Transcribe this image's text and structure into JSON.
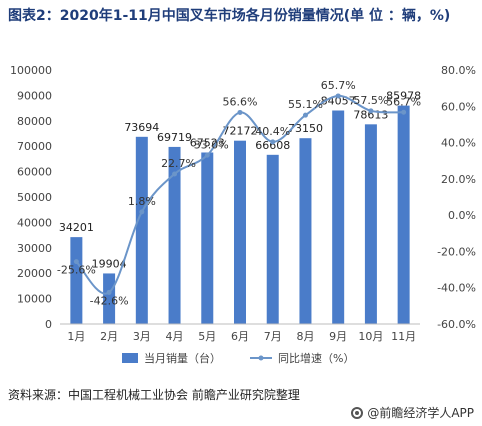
{
  "title": "图表2：2020年1-11月中国叉车市场各月份销量情况(单 位 ：辆，%)",
  "source": "资料来源：中国工程机械工业协会 前瞻产业研究院整理",
  "brand": "@前瞻经济学人APP",
  "colors": {
    "bar": "#4a7cc9",
    "line": "#6b95c9",
    "title": "#1f3d7a"
  },
  "chart_data": {
    "type": "bar",
    "categories": [
      "1月",
      "2月",
      "3月",
      "4月",
      "5月",
      "6月",
      "7月",
      "8月",
      "9月",
      "10月",
      "11月"
    ],
    "series": [
      {
        "name": "当月销量（台）",
        "type": "bar",
        "axis": "left",
        "values": [
          34201,
          19904,
          73694,
          69719,
          67523,
          72172,
          66608,
          73150,
          84057,
          78613,
          85978
        ],
        "labels": [
          "34201",
          "19904",
          "73694",
          "69719",
          "67523",
          "72172",
          "66608",
          "73150",
          "84057",
          "78613",
          "85978"
        ]
      },
      {
        "name": "同比增速（%）",
        "type": "line",
        "axis": "right",
        "values": [
          -25.6,
          -42.6,
          1.8,
          22.7,
          33.0,
          56.6,
          40.4,
          55.1,
          65.7,
          57.5,
          56.7
        ],
        "labels": [
          "-25.6%",
          "-42.6%",
          "1.8%",
          "22.7%",
          "33.0%",
          "56.6%",
          "40.4%",
          "55.1%",
          "65.7%",
          "57.5%",
          "56.7%"
        ]
      }
    ],
    "y_left": {
      "min": 0,
      "max": 100000,
      "ticks": [
        "0",
        "10000",
        "20000",
        "30000",
        "40000",
        "50000",
        "60000",
        "70000",
        "80000",
        "90000",
        "100000"
      ]
    },
    "y_right": {
      "min": -60,
      "max": 80,
      "ticks": [
        "-60.0%",
        "-40.0%",
        "-20.0%",
        "0.0%",
        "20.0%",
        "40.0%",
        "60.0%",
        "80.0%"
      ]
    },
    "legend_position": "bottom",
    "grid": false
  }
}
